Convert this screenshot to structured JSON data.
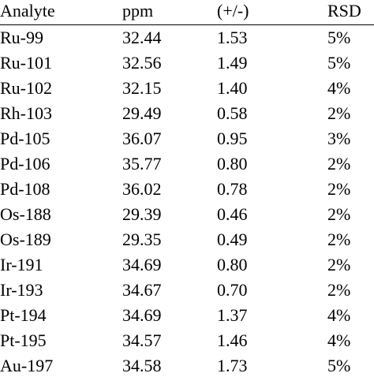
{
  "table": {
    "header": [
      "Analyte",
      "ppm",
      "(+/-)",
      "RSD"
    ],
    "rows": [
      [
        "Ru-99",
        "32.44",
        "1.53",
        "5%"
      ],
      [
        "Ru-101",
        "32.56",
        "1.49",
        "5%"
      ],
      [
        "Ru-102",
        "32.15",
        "1.40",
        "4%"
      ],
      [
        "Rh-103",
        "29.49",
        "0.58",
        "2%"
      ],
      [
        "Pd-105",
        "36.07",
        "0.95",
        "3%"
      ],
      [
        "Pd-106",
        "35.77",
        "0.80",
        "2%"
      ],
      [
        "Pd-108",
        "36.02",
        "0.78",
        "2%"
      ],
      [
        "Os-188",
        "29.39",
        "0.46",
        "2%"
      ],
      [
        "Os-189",
        "29.35",
        "0.49",
        "2%"
      ],
      [
        "Ir-191",
        "34.69",
        "0.80",
        "2%"
      ],
      [
        "Ir-193",
        "34.67",
        "0.70",
        "2%"
      ],
      [
        "Pt-194",
        "34.69",
        "1.37",
        "4%"
      ],
      [
        "Pt-195",
        "34.57",
        "1.46",
        "4%"
      ],
      [
        "Au-197",
        "34.58",
        "1.73",
        "5%"
      ]
    ]
  }
}
